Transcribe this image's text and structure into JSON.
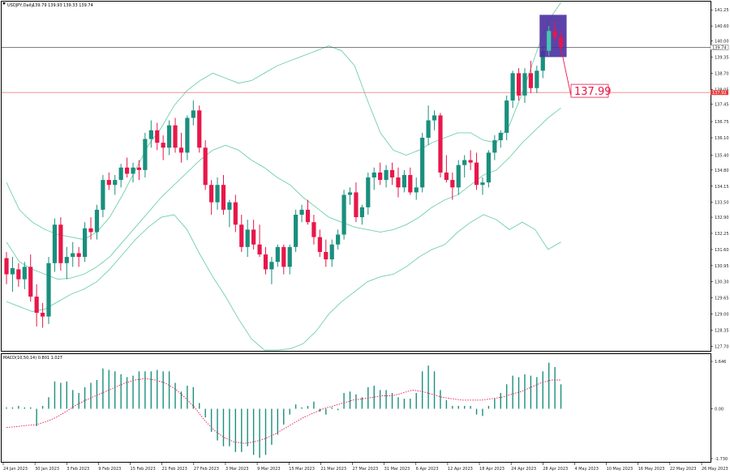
{
  "window": {
    "title": "USDJPY,Daily",
    "ohlc": "139.79 139.93 139.33 139.74",
    "menu_icon": "triangle-down-icon"
  },
  "macd": {
    "label": "MACD(10,50,14) 0.801 1.027",
    "ticks": [
      "1.646",
      "0.00",
      "-1.730"
    ]
  },
  "price_axis": {
    "ticks": [
      "141.25",
      "140.60",
      "140.00",
      "139.35",
      "138.70",
      "138.05",
      "137.45",
      "136.75",
      "136.10",
      "135.40",
      "134.80",
      "134.15",
      "133.50",
      "132.90",
      "132.25",
      "131.60",
      "130.95",
      "130.30",
      "129.65",
      "129.00",
      "128.35",
      "127.70"
    ],
    "current_price": "139.74",
    "level_price": "137.92"
  },
  "date_axis": {
    "ticks": [
      "24 Jan 2023",
      "30 Jan 2023",
      "3 Feb 2023",
      "9 Feb 2023",
      "15 Feb 2023",
      "21 Feb 2023",
      "27 Feb 2023",
      "3 Mar 2023",
      "9 Mar 2023",
      "15 Mar 2023",
      "21 Mar 2023",
      "27 Mar 2023",
      "31 Mar 2023",
      "6 Apr 2023",
      "12 Apr 2023",
      "18 Apr 2023",
      "24 Apr 2023",
      "28 Apr 2023",
      "4 May 2023",
      "10 May 2023",
      "16 May 2023",
      "22 May 2023",
      "26 May 2023"
    ]
  },
  "annotation": {
    "target_label": "137.99"
  },
  "colors": {
    "bull": "#1a8f7e",
    "bear": "#e8174a",
    "bands": "#6fd0a8",
    "level_line": "#f08080",
    "target_text": "#e8174a",
    "signal": "#e8174a",
    "highlight": "#4a2fa0"
  },
  "chart_data": {
    "type": "candlestick",
    "title": "USDJPY,Daily",
    "y_range": [
      127.55,
      141.55
    ],
    "candles": [
      [
        131.25,
        131.5,
        130.2,
        130.6
      ],
      [
        130.6,
        131.3,
        129.9,
        130.85
      ],
      [
        130.8,
        131.05,
        130.1,
        130.4
      ],
      [
        130.4,
        131.1,
        130.0,
        130.9
      ],
      [
        130.9,
        131.4,
        129.5,
        129.7
      ],
      [
        129.7,
        130.2,
        128.5,
        129.05
      ],
      [
        129.05,
        129.45,
        128.45,
        128.9
      ],
      [
        128.9,
        131.3,
        128.6,
        131.05
      ],
      [
        131.05,
        132.85,
        130.7,
        132.6
      ],
      [
        132.6,
        132.9,
        130.75,
        131.05
      ],
      [
        131.05,
        131.7,
        130.4,
        131.3
      ],
      [
        131.3,
        131.9,
        130.9,
        131.45
      ],
      [
        131.45,
        131.7,
        130.9,
        131.3
      ],
      [
        131.3,
        132.7,
        131.1,
        132.45
      ],
      [
        132.45,
        132.9,
        132.0,
        132.3
      ],
      [
        132.3,
        133.4,
        132.0,
        133.2
      ],
      [
        133.2,
        134.6,
        132.9,
        134.4
      ],
      [
        134.4,
        134.7,
        134.0,
        134.2
      ],
      [
        134.2,
        134.6,
        133.8,
        134.4
      ],
      [
        134.4,
        135.05,
        134.1,
        134.9
      ],
      [
        134.9,
        135.3,
        134.5,
        134.65
      ],
      [
        134.65,
        135.1,
        134.3,
        134.9
      ],
      [
        134.9,
        135.2,
        134.4,
        134.8
      ],
      [
        134.8,
        136.3,
        134.5,
        136.05
      ],
      [
        136.05,
        136.8,
        135.7,
        136.4
      ],
      [
        136.4,
        136.7,
        135.6,
        135.9
      ],
      [
        135.9,
        136.2,
        135.2,
        135.7
      ],
      [
        135.7,
        136.8,
        135.4,
        136.6
      ],
      [
        136.6,
        136.9,
        135.5,
        135.7
      ],
      [
        135.7,
        136.3,
        135.1,
        135.5
      ],
      [
        135.5,
        137.0,
        135.2,
        136.9
      ],
      [
        136.9,
        137.6,
        136.6,
        137.2
      ],
      [
        137.2,
        137.4,
        135.5,
        135.7
      ],
      [
        135.7,
        136.0,
        134.0,
        134.2
      ],
      [
        134.2,
        134.4,
        133.0,
        133.5
      ],
      [
        133.5,
        134.5,
        133.2,
        134.2
      ],
      [
        134.2,
        134.6,
        133.0,
        133.2
      ],
      [
        133.2,
        133.6,
        132.5,
        133.5
      ],
      [
        133.5,
        133.8,
        132.3,
        132.6
      ],
      [
        132.6,
        133.0,
        131.5,
        131.7
      ],
      [
        131.7,
        132.8,
        131.3,
        132.4
      ],
      [
        132.4,
        132.8,
        131.6,
        131.8
      ],
      [
        131.8,
        132.6,
        131.3,
        131.4
      ],
      [
        131.4,
        131.7,
        130.6,
        130.8
      ],
      [
        130.8,
        131.3,
        130.2,
        131.1
      ],
      [
        131.1,
        131.8,
        130.9,
        131.7
      ],
      [
        131.7,
        131.8,
        130.6,
        130.9
      ],
      [
        130.9,
        131.8,
        130.6,
        131.7
      ],
      [
        131.7,
        133.2,
        131.5,
        133.0
      ],
      [
        133.0,
        133.4,
        132.7,
        133.2
      ],
      [
        133.2,
        133.6,
        132.6,
        132.7
      ],
      [
        132.7,
        133.0,
        131.8,
        132.1
      ],
      [
        132.1,
        132.4,
        131.3,
        131.5
      ],
      [
        131.5,
        132.0,
        130.9,
        131.2
      ],
      [
        131.2,
        132.0,
        130.9,
        131.8
      ],
      [
        131.8,
        132.4,
        131.6,
        132.2
      ],
      [
        132.2,
        134.0,
        132.0,
        133.8
      ],
      [
        133.8,
        134.1,
        133.4,
        133.9
      ],
      [
        133.9,
        134.3,
        132.7,
        132.9
      ],
      [
        132.9,
        133.4,
        132.6,
        133.3
      ],
      [
        133.3,
        134.7,
        133.0,
        134.5
      ],
      [
        134.5,
        134.9,
        134.0,
        134.7
      ],
      [
        134.7,
        135.1,
        134.2,
        134.4
      ],
      [
        134.4,
        135.0,
        134.1,
        134.8
      ],
      [
        134.8,
        135.1,
        134.2,
        134.5
      ],
      [
        134.5,
        134.9,
        133.7,
        134.1
      ],
      [
        134.1,
        134.8,
        133.9,
        134.6
      ],
      [
        134.6,
        134.9,
        133.8,
        133.9
      ],
      [
        133.9,
        134.5,
        133.6,
        134.1
      ],
      [
        134.1,
        136.3,
        133.9,
        136.1
      ],
      [
        136.1,
        137.4,
        135.8,
        136.8
      ],
      [
        136.8,
        137.2,
        136.4,
        137.0
      ],
      [
        137.0,
        137.1,
        134.5,
        134.7
      ],
      [
        134.7,
        135.4,
        134.3,
        134.4
      ],
      [
        134.4,
        134.7,
        133.6,
        134.1
      ],
      [
        134.1,
        135.2,
        133.8,
        135.0
      ],
      [
        135.0,
        135.4,
        134.5,
        135.2
      ],
      [
        135.2,
        135.6,
        134.8,
        135.1
      ],
      [
        135.1,
        135.5,
        134.0,
        134.2
      ],
      [
        134.2,
        134.5,
        133.8,
        134.3
      ],
      [
        134.3,
        135.6,
        134.1,
        135.5
      ],
      [
        135.5,
        136.2,
        135.2,
        136.0
      ],
      [
        136.0,
        136.4,
        135.7,
        136.3
      ],
      [
        136.3,
        137.8,
        136.0,
        137.6
      ],
      [
        137.6,
        138.8,
        137.3,
        138.7
      ],
      [
        138.7,
        138.9,
        137.6,
        137.8
      ],
      [
        137.8,
        138.9,
        137.5,
        138.7
      ],
      [
        138.7,
        139.2,
        137.9,
        138.1
      ],
      [
        138.1,
        139.0,
        137.9,
        138.8
      ],
      [
        138.8,
        139.8,
        138.5,
        139.6
      ],
      [
        139.6,
        140.6,
        139.4,
        140.4
      ],
      [
        140.4,
        140.8,
        140.0,
        140.15
      ],
      [
        140.15,
        140.4,
        139.5,
        139.74
      ]
    ],
    "bollinger": {
      "upper": [
        134.3,
        133.2,
        132.7,
        132.4,
        132.2,
        132.1,
        132.0,
        132.3,
        132.9,
        133.8,
        134.8,
        135.8,
        136.5,
        137.4,
        138.0,
        138.4,
        138.7,
        138.5,
        138.3,
        138.4,
        138.7,
        139.0,
        139.2,
        139.4,
        139.6,
        139.8,
        139.6,
        139.0,
        137.6,
        136.3,
        135.6,
        135.4,
        135.6,
        135.9,
        136.1,
        136.3,
        136.3,
        136.0,
        135.9,
        136.6,
        137.9,
        139.4,
        140.8,
        141.55
      ],
      "middle": [
        131.9,
        131.1,
        130.8,
        130.6,
        130.4,
        130.45,
        130.6,
        130.9,
        131.3,
        131.9,
        132.5,
        133.1,
        133.7,
        134.2,
        134.7,
        135.2,
        135.6,
        135.8,
        135.6,
        135.2,
        134.9,
        134.5,
        134.2,
        133.7,
        133.3,
        132.9,
        132.7,
        132.5,
        132.4,
        132.3,
        132.4,
        132.6,
        132.9,
        133.3,
        133.6,
        133.8,
        134.2,
        134.6,
        134.8,
        135.3,
        135.9,
        136.4,
        136.9,
        137.3
      ],
      "lower": [
        129.5,
        129.3,
        129.1,
        129.2,
        129.5,
        129.8,
        130.0,
        130.3,
        130.8,
        131.4,
        132.0,
        132.5,
        132.9,
        133.0,
        132.4,
        131.4,
        130.5,
        129.7,
        128.8,
        128.0,
        127.55,
        127.55,
        127.6,
        127.8,
        128.3,
        129.0,
        129.5,
        129.9,
        130.3,
        130.5,
        130.6,
        130.9,
        131.3,
        131.6,
        131.8,
        132.3,
        132.7,
        133.0,
        132.8,
        132.4,
        132.7,
        132.4,
        131.6,
        131.9
      ]
    },
    "horizontal_levels": [
      139.74,
      137.92
    ],
    "target_price": 137.99,
    "macd": {
      "range": [
        -1.73,
        1.646
      ],
      "histogram": [
        0.05,
        0.05,
        0.1,
        0.05,
        0.05,
        -0.6,
        0.1,
        0.4,
        0.95,
        0.9,
        0.95,
        0.65,
        0.55,
        0.75,
        0.9,
        1.0,
        1.4,
        1.35,
        1.3,
        1.2,
        1.1,
        1.15,
        1.3,
        1.3,
        1.3,
        1.35,
        1.3,
        1.3,
        0.9,
        0.6,
        0.8,
        0.75,
        0.2,
        -0.3,
        -0.8,
        -1.1,
        -1.3,
        -1.3,
        -1.5,
        -1.5,
        -1.3,
        -1.6,
        -1.7,
        -1.6,
        -1.25,
        -0.9,
        -0.55,
        -0.2,
        0.15,
        0.05,
        0.1,
        0.25,
        -0.1,
        -0.2,
        0.05,
        -0.05,
        0.55,
        0.6,
        0.5,
        0.4,
        0.75,
        0.8,
        0.65,
        0.65,
        0.55,
        0.4,
        0.35,
        0.35,
        0.55,
        1.3,
        1.5,
        1.3,
        0.65,
        0.3,
        0.1,
        0.1,
        0.1,
        0.1,
        -0.2,
        -0.25,
        0.1,
        0.35,
        0.55,
        0.85,
        1.15,
        1.1,
        1.2,
        1.15,
        1.1,
        1.3,
        1.6,
        1.45,
        0.85
      ],
      "signal": [
        -0.65,
        -0.62,
        -0.58,
        -0.55,
        -0.45,
        -0.3,
        -0.1,
        0.12,
        0.3,
        0.45,
        0.6,
        0.75,
        0.9,
        1.0,
        1.05,
        1.0,
        0.9,
        0.7,
        0.4,
        0.05,
        -0.4,
        -0.75,
        -1.0,
        -1.15,
        -1.2,
        -1.15,
        -1.05,
        -0.9,
        -0.7,
        -0.5,
        -0.3,
        -0.15,
        0.0,
        0.1,
        0.2,
        0.3,
        0.35,
        0.4,
        0.45,
        0.45,
        0.55,
        0.65,
        0.6,
        0.5,
        0.4,
        0.35,
        0.3,
        0.3,
        0.3,
        0.35,
        0.4,
        0.5,
        0.6,
        0.75,
        0.9,
        1.0,
        1.0
      ],
      "zero_line": 0.0
    }
  }
}
